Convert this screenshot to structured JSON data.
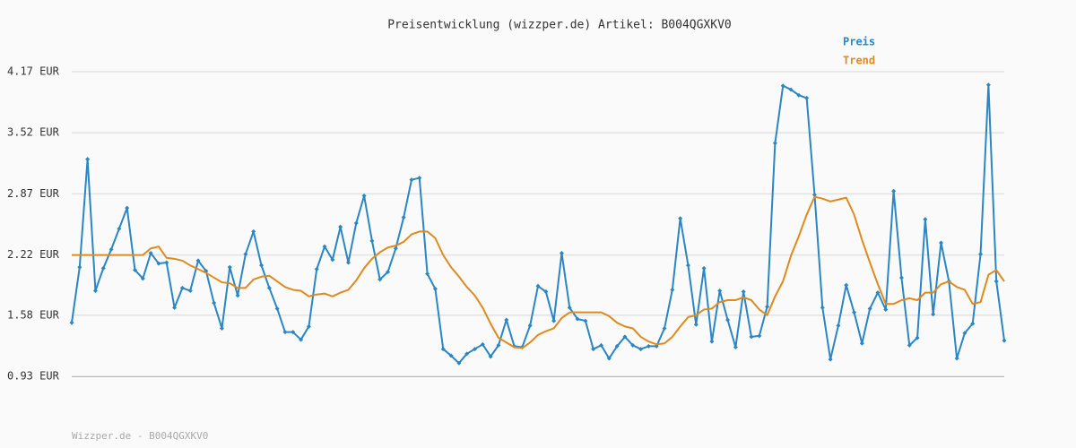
{
  "chart_data": {
    "type": "line",
    "title": "Preisentwicklung (wizzper.de) Artikel: B004QGXKV0",
    "footer": "Wizzper.de - B004QGXKV0",
    "ylim": [
      0.93,
      4.17
    ],
    "yticks": [
      {
        "value": 0.93,
        "label": "0.93 EUR"
      },
      {
        "value": 1.58,
        "label": "1.58 EUR"
      },
      {
        "value": 2.22,
        "label": "2.22 EUR"
      },
      {
        "value": 2.87,
        "label": "2.87 EUR"
      },
      {
        "value": 3.52,
        "label": "3.52 EUR"
      },
      {
        "value": 4.17,
        "label": "4.17 EUR"
      }
    ],
    "grid": true,
    "legend": "top-right",
    "series": [
      {
        "name": "Preis",
        "color": "#2a86c4",
        "markers": true,
        "values": [
          1.5,
          2.09,
          3.24,
          1.84,
          2.08,
          2.28,
          2.5,
          2.72,
          2.06,
          1.97,
          2.24,
          2.13,
          2.14,
          1.66,
          1.87,
          1.84,
          2.16,
          2.05,
          1.71,
          1.44,
          2.09,
          1.79,
          2.23,
          2.47,
          2.11,
          1.87,
          1.65,
          1.4,
          1.4,
          1.32,
          1.46,
          2.07,
          2.31,
          2.17,
          2.52,
          2.14,
          2.56,
          2.85,
          2.37,
          1.96,
          2.04,
          2.29,
          2.62,
          3.02,
          3.04,
          2.02,
          1.86,
          1.22,
          1.15,
          1.07,
          1.17,
          1.22,
          1.27,
          1.14,
          1.26,
          1.53,
          1.25,
          1.24,
          1.47,
          1.89,
          1.83,
          1.52,
          2.24,
          1.66,
          1.54,
          1.52,
          1.22,
          1.26,
          1.12,
          1.25,
          1.35,
          1.26,
          1.22,
          1.25,
          1.25,
          1.44,
          1.85,
          2.61,
          2.11,
          1.48,
          2.08,
          1.3,
          1.84,
          1.53,
          1.24,
          1.83,
          1.35,
          1.36,
          1.67,
          3.41,
          4.02,
          3.98,
          3.92,
          3.89,
          2.86,
          1.66,
          1.11,
          1.47,
          1.9,
          1.61,
          1.28,
          1.65,
          1.82,
          1.64,
          2.9,
          1.98,
          1.26,
          1.34,
          2.6,
          1.59,
          2.35,
          1.94,
          1.12,
          1.39,
          1.49,
          2.23,
          4.03,
          1.94,
          1.31
        ]
      },
      {
        "name": "Trend",
        "color": "#e08a1e",
        "markers": false,
        "values": [
          2.22,
          2.22,
          2.22,
          2.22,
          2.22,
          2.22,
          2.22,
          2.22,
          2.22,
          2.22,
          2.29,
          2.31,
          2.19,
          2.18,
          2.16,
          2.11,
          2.07,
          2.03,
          1.98,
          1.93,
          1.92,
          1.87,
          1.87,
          1.96,
          1.99,
          2.0,
          1.94,
          1.88,
          1.85,
          1.84,
          1.78,
          1.8,
          1.81,
          1.78,
          1.82,
          1.85,
          1.95,
          2.08,
          2.18,
          2.25,
          2.3,
          2.32,
          2.36,
          2.44,
          2.47,
          2.47,
          2.4,
          2.22,
          2.09,
          1.99,
          1.88,
          1.79,
          1.66,
          1.49,
          1.34,
          1.29,
          1.24,
          1.23,
          1.29,
          1.37,
          1.41,
          1.44,
          1.55,
          1.61,
          1.61,
          1.61,
          1.61,
          1.61,
          1.57,
          1.5,
          1.46,
          1.44,
          1.35,
          1.3,
          1.27,
          1.28,
          1.35,
          1.46,
          1.56,
          1.58,
          1.64,
          1.65,
          1.72,
          1.74,
          1.74,
          1.77,
          1.74,
          1.64,
          1.58,
          1.78,
          1.94,
          2.21,
          2.42,
          2.65,
          2.84,
          2.82,
          2.79,
          2.81,
          2.83,
          2.65,
          2.38,
          2.14,
          1.91,
          1.7,
          1.7,
          1.74,
          1.76,
          1.74,
          1.82,
          1.82,
          1.91,
          1.94,
          1.88,
          1.85,
          1.7,
          1.72,
          2.01,
          2.06,
          1.94
        ]
      }
    ]
  }
}
